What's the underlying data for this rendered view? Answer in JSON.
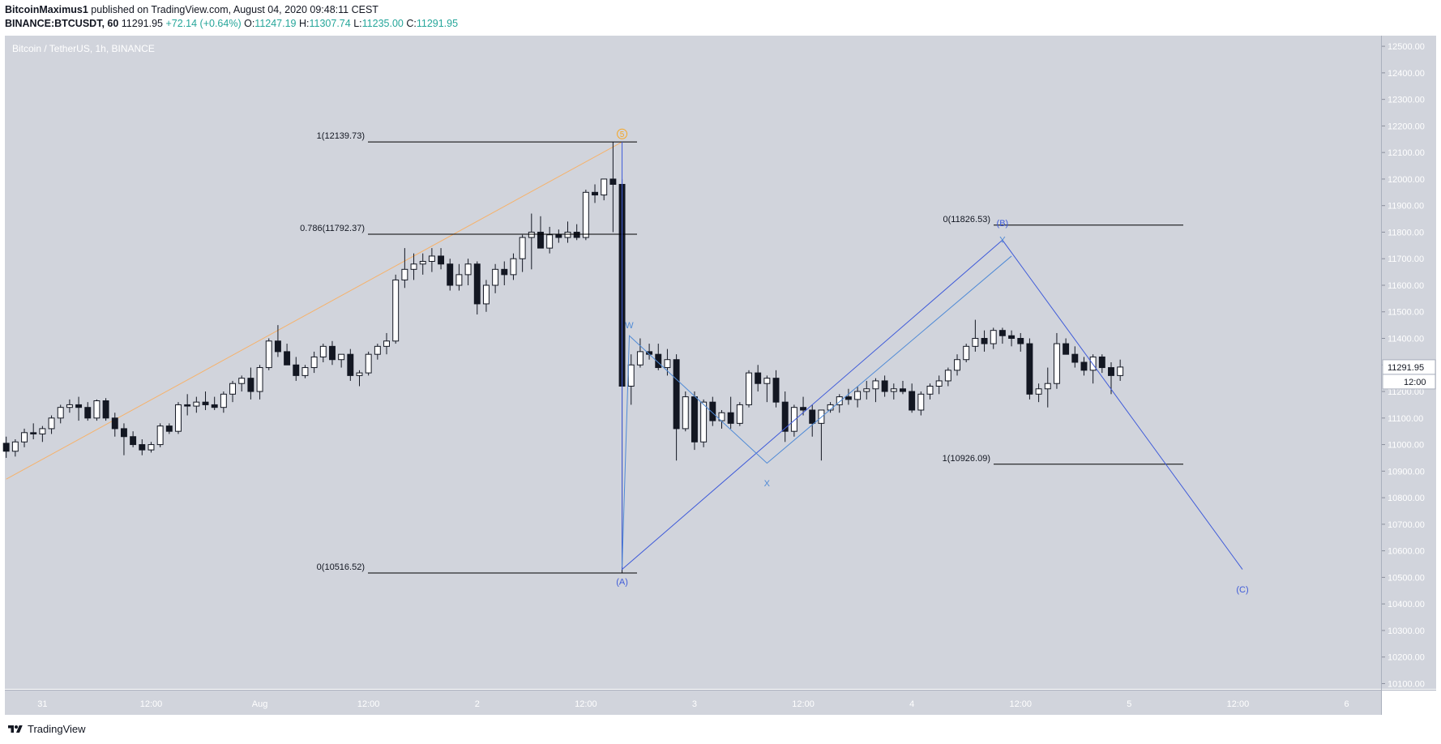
{
  "header": {
    "author": "BitcoinMaximus1",
    "published_text": "published on TradingView.com, August 04, 2020 09:48:11 CEST",
    "symbol": "BINANCE:BTCUSDT, 60",
    "last": "11291.95",
    "change": "+72.14 (+0.64%)",
    "o_label": "O:",
    "o_value": "11247.19",
    "h_label": "H:",
    "h_value": "11307.74",
    "l_label": "L:",
    "l_value": "11235.00",
    "c_label": "C:",
    "c_value": "11291.95"
  },
  "footer": {
    "brand": "TradingView"
  },
  "colors": {
    "background": "#d1d4dc",
    "candle_up": "#ffffff",
    "candle_down": "#131722",
    "wave_blue": "#3f5bd9",
    "wave_light_blue": "#4f8ad6",
    "trend_orange": "#f6b26b",
    "fib_line": "#000000",
    "price_tag": "#ffffff"
  },
  "chart_data": {
    "type": "candlestick",
    "title": "Bitcoin / TetherUS, 1h, BINANCE",
    "xlabel": "",
    "ylabel": "",
    "ylim": [
      10080,
      12540
    ],
    "y_ticks": [
      "12500.00",
      "12400.00",
      "12300.00",
      "12200.00",
      "12100.00",
      "12000.00",
      "11900.00",
      "11800.00",
      "11700.00",
      "11600.00",
      "11500.00",
      "11400.00",
      "11300.00",
      "11200.00",
      "11100.00",
      "11000.00",
      "10900.00",
      "10800.00",
      "10700.00",
      "10600.00",
      "10500.00",
      "10400.00",
      "10300.00",
      "10200.00",
      "10100.00"
    ],
    "x_ticks": [
      {
        "label": "31",
        "t": 16
      },
      {
        "label": "12:00",
        "t": 28
      },
      {
        "label": "Aug",
        "t": 40
      },
      {
        "label": "12:00",
        "t": 52
      },
      {
        "label": "2",
        "t": 64
      },
      {
        "label": "12:00",
        "t": 76
      },
      {
        "label": "3",
        "t": 88
      },
      {
        "label": "12:00",
        "t": 100
      },
      {
        "label": "4",
        "t": 112
      },
      {
        "label": "12:00",
        "t": 124
      },
      {
        "label": "5",
        "t": 136
      },
      {
        "label": "12:00",
        "t": 148
      },
      {
        "label": "6",
        "t": 160
      }
    ],
    "x_range": [
      11.85,
      163.8
    ],
    "last_price": {
      "value": 11291.95,
      "label": "11291.95",
      "time_label": "12:00"
    },
    "candles": [
      [
        11005,
        11030,
        10950,
        10975
      ],
      [
        10975,
        11020,
        10955,
        11010
      ],
      [
        11010,
        11060,
        10990,
        11045
      ],
      [
        11045,
        11080,
        11020,
        11040
      ],
      [
        11040,
        11070,
        11010,
        11060
      ],
      [
        11060,
        11110,
        11040,
        11100
      ],
      [
        11100,
        11150,
        11080,
        11140
      ],
      [
        11140,
        11170,
        11120,
        11150
      ],
      [
        11150,
        11180,
        11090,
        11140
      ],
      [
        11140,
        11160,
        11090,
        11100
      ],
      [
        11100,
        11170,
        11090,
        11165
      ],
      [
        11165,
        11175,
        11090,
        11100
      ],
      [
        11100,
        11120,
        11030,
        11060
      ],
      [
        11060,
        11080,
        10960,
        11030
      ],
      [
        11030,
        11050,
        10990,
        11000
      ],
      [
        11000,
        11020,
        10960,
        10980
      ],
      [
        10980,
        11010,
        10970,
        11000
      ],
      [
        11000,
        11080,
        10990,
        11070
      ],
      [
        11070,
        11080,
        11040,
        11050
      ],
      [
        11050,
        11160,
        11040,
        11150
      ],
      [
        11150,
        11190,
        11110,
        11145
      ],
      [
        11145,
        11180,
        11120,
        11160
      ],
      [
        11160,
        11200,
        11130,
        11150
      ],
      [
        11150,
        11180,
        11130,
        11140
      ],
      [
        11140,
        11200,
        11120,
        11190
      ],
      [
        11190,
        11240,
        11160,
        11230
      ],
      [
        11230,
        11260,
        11200,
        11250
      ],
      [
        11250,
        11290,
        11170,
        11200
      ],
      [
        11200,
        11300,
        11170,
        11290
      ],
      [
        11290,
        11400,
        11280,
        11390
      ],
      [
        11390,
        11450,
        11330,
        11350
      ],
      [
        11350,
        11380,
        11300,
        11300
      ],
      [
        11300,
        11330,
        11240,
        11260
      ],
      [
        11260,
        11300,
        11250,
        11290
      ],
      [
        11290,
        11350,
        11270,
        11330
      ],
      [
        11330,
        11380,
        11310,
        11370
      ],
      [
        11370,
        11390,
        11300,
        11320
      ],
      [
        11320,
        11340,
        11290,
        11340
      ],
      [
        11340,
        11360,
        11240,
        11260
      ],
      [
        11260,
        11280,
        11220,
        11270
      ],
      [
        11270,
        11350,
        11260,
        11340
      ],
      [
        11340,
        11380,
        11320,
        11370
      ],
      [
        11370,
        11420,
        11340,
        11390
      ],
      [
        11390,
        11640,
        11380,
        11620
      ],
      [
        11620,
        11740,
        11590,
        11660
      ],
      [
        11660,
        11720,
        11620,
        11680
      ],
      [
        11680,
        11720,
        11640,
        11690
      ],
      [
        11690,
        11740,
        11650,
        11710
      ],
      [
        11710,
        11740,
        11660,
        11680
      ],
      [
        11680,
        11700,
        11580,
        11600
      ],
      [
        11600,
        11680,
        11580,
        11640
      ],
      [
        11640,
        11700,
        11600,
        11680
      ],
      [
        11680,
        11690,
        11490,
        11530
      ],
      [
        11530,
        11620,
        11500,
        11600
      ],
      [
        11600,
        11680,
        11570,
        11660
      ],
      [
        11660,
        11690,
        11600,
        11640
      ],
      [
        11640,
        11720,
        11620,
        11700
      ],
      [
        11700,
        11790,
        11650,
        11780
      ],
      [
        11780,
        11870,
        11660,
        11800
      ],
      [
        11800,
        11860,
        11740,
        11740
      ],
      [
        11740,
        11820,
        11720,
        11790
      ],
      [
        11790,
        11810,
        11760,
        11780
      ],
      [
        11780,
        11840,
        11760,
        11800
      ],
      [
        11800,
        11830,
        11770,
        11780
      ],
      [
        11780,
        11960,
        11770,
        11950
      ],
      [
        11950,
        11980,
        11910,
        11940
      ],
      [
        11940,
        12000,
        11920,
        12000
      ],
      [
        12000,
        12139,
        11800,
        11980
      ],
      [
        11980,
        12000,
        10517,
        11220
      ],
      [
        11220,
        11340,
        11150,
        11300
      ],
      [
        11300,
        11400,
        11290,
        11350
      ],
      [
        11350,
        11380,
        11320,
        11340
      ],
      [
        11340,
        11380,
        11280,
        11290
      ],
      [
        11290,
        11360,
        11260,
        11320
      ],
      [
        11320,
        11340,
        10940,
        11060
      ],
      [
        11060,
        11200,
        11050,
        11180
      ],
      [
        11180,
        11200,
        10980,
        11010
      ],
      [
        11010,
        11170,
        10990,
        11160
      ],
      [
        11160,
        11180,
        11070,
        11090
      ],
      [
        11090,
        11130,
        11060,
        11120
      ],
      [
        11120,
        11180,
        11060,
        11080
      ],
      [
        11080,
        11160,
        11070,
        11150
      ],
      [
        11150,
        11280,
        11140,
        11270
      ],
      [
        11270,
        11300,
        11200,
        11230
      ],
      [
        11230,
        11260,
        11160,
        11250
      ],
      [
        11250,
        11280,
        11140,
        11160
      ],
      [
        11160,
        11200,
        11010,
        11050
      ],
      [
        11050,
        11150,
        11030,
        11140
      ],
      [
        11140,
        11180,
        11110,
        11130
      ],
      [
        11130,
        11150,
        11030,
        11080
      ],
      [
        11080,
        11120,
        10940,
        11130
      ],
      [
        11130,
        11160,
        11120,
        11150
      ],
      [
        11150,
        11190,
        11120,
        11180
      ],
      [
        11180,
        11210,
        11150,
        11170
      ],
      [
        11170,
        11220,
        11140,
        11200
      ],
      [
        11200,
        11240,
        11170,
        11210
      ],
      [
        11210,
        11250,
        11160,
        11240
      ],
      [
        11240,
        11260,
        11180,
        11200
      ],
      [
        11200,
        11230,
        11170,
        11210
      ],
      [
        11210,
        11240,
        11190,
        11200
      ],
      [
        11200,
        11230,
        11120,
        11130
      ],
      [
        11130,
        11200,
        11110,
        11190
      ],
      [
        11190,
        11230,
        11170,
        11220
      ],
      [
        11220,
        11260,
        11190,
        11240
      ],
      [
        11240,
        11290,
        11220,
        11280
      ],
      [
        11280,
        11340,
        11260,
        11320
      ],
      [
        11320,
        11380,
        11310,
        11370
      ],
      [
        11370,
        11470,
        11350,
        11400
      ],
      [
        11400,
        11430,
        11350,
        11380
      ],
      [
        11380,
        11440,
        11360,
        11430
      ],
      [
        11430,
        11440,
        11380,
        11410
      ],
      [
        11410,
        11430,
        11370,
        11400
      ],
      [
        11400,
        11420,
        11350,
        11380
      ],
      [
        11380,
        11400,
        11170,
        11190
      ],
      [
        11190,
        11230,
        11160,
        11210
      ],
      [
        11210,
        11290,
        11140,
        11230
      ],
      [
        11230,
        11420,
        11210,
        11380
      ],
      [
        11380,
        11400,
        11340,
        11340
      ],
      [
        11340,
        11370,
        11290,
        11310
      ],
      [
        11310,
        11330,
        11260,
        11280
      ],
      [
        11280,
        11340,
        11230,
        11330
      ],
      [
        11330,
        11340,
        11270,
        11290
      ],
      [
        11290,
        11310,
        11190,
        11260
      ],
      [
        11260,
        11320,
        11240,
        11292
      ]
    ],
    "annotations": {
      "wave_labels": [
        {
          "text": "5",
          "t": 80,
          "price": 12170,
          "style": "circle",
          "color": "#f6a623"
        },
        {
          "text": "W",
          "t": 80.8,
          "price": 11450,
          "color": "#4f8ad6"
        },
        {
          "text": "X",
          "t": 96,
          "price": 10855,
          "color": "#4f8ad6"
        },
        {
          "text": "Y",
          "t": 122,
          "price": 11772,
          "color": "#4f8ad6"
        },
        {
          "text": "(A)",
          "t": 80,
          "price": 10485,
          "color": "#3f5bd9"
        },
        {
          "text": "(B)",
          "t": 122,
          "price": 11835,
          "color": "#3f5bd9"
        },
        {
          "text": "(C)",
          "t": 148.5,
          "price": 10455,
          "color": "#3f5bd9"
        }
      ],
      "fib_left": [
        {
          "label": "1(12139.73)",
          "price": 12139.73
        },
        {
          "label": "0.786(11792.37)",
          "price": 11792.37
        },
        {
          "label": "0(10516.52)",
          "price": 10516.52
        }
      ],
      "fib_right": [
        {
          "label": "0(11826.53)",
          "price": 11826.53
        },
        {
          "label": "1(10926.09)",
          "price": 10926.09
        }
      ]
    }
  }
}
